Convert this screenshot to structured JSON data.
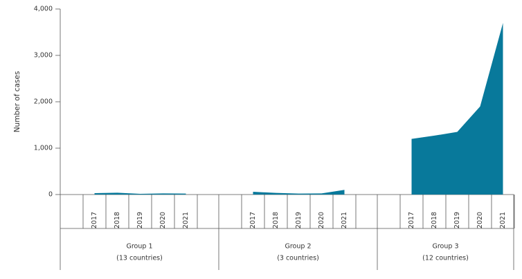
{
  "chart_data": {
    "type": "area",
    "ylabel": "Number of cases",
    "color": "#08799b",
    "ylim": [
      0,
      4000
    ],
    "yticks": [
      0,
      {
        "value": 1000,
        "label": "1,000"
      },
      {
        "value": 2000,
        "label": "2,000"
      },
      {
        "value": 3000,
        "label": "3,000"
      },
      {
        "value": 4000,
        "label": "4,000"
      }
    ],
    "groups": [
      {
        "name": "Group 1",
        "note": "(13 countries)",
        "categories": [
          "2017",
          "2018",
          "2019",
          "2020",
          "2021"
        ],
        "values": [
          30,
          40,
          15,
          25,
          20
        ]
      },
      {
        "name": "Group 2",
        "note": "(3 countries)",
        "categories": [
          "2017",
          "2018",
          "2019",
          "2020",
          "2021"
        ],
        "values": [
          60,
          35,
          20,
          25,
          100
        ]
      },
      {
        "name": "Group 3",
        "note": "(12 countries)",
        "categories": [
          "2017",
          "2018",
          "2019",
          "2020",
          "2021"
        ],
        "values": [
          1200,
          1270,
          1350,
          1900,
          3700
        ]
      }
    ]
  }
}
